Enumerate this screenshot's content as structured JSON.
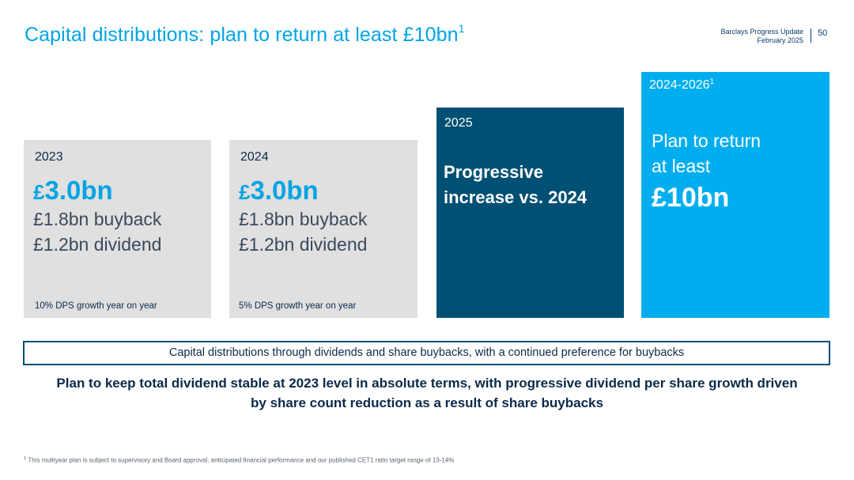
{
  "header": {
    "title": "Capital distributions: plan to return at least £10bn",
    "title_footnote_ref": "1",
    "doc_name": "Barclays Progress Update",
    "doc_date": "February 2025",
    "page_number": "50"
  },
  "cards": [
    {
      "year": "2023",
      "amount_symbol": "£",
      "amount_value": "3.0bn",
      "line1": "£1.8bn buyback",
      "line2": "£1.2bn dividend",
      "note": "10% DPS growth year on year"
    },
    {
      "year": "2024",
      "amount_symbol": "£",
      "amount_value": "3.0bn",
      "line1": "£1.8bn buyback",
      "line2": "£1.2bn dividend",
      "note": "5% DPS growth year on year"
    },
    {
      "year": "2025",
      "text_line1": "Progressive",
      "text_line2": "increase vs. 2024"
    },
    {
      "year": "2024-2026",
      "year_footnote_ref": "1",
      "line1": "Plan to return",
      "line2": "at least",
      "amount": "£10bn"
    }
  ],
  "banner": "Capital distributions through dividends and share buybacks, with a continued preference for buybacks",
  "statement": {
    "line1": "Plan to keep total dividend stable at 2023 level in absolute terms, with progressive dividend per share growth driven",
    "line2": "by share count reduction as a result of share buybacks"
  },
  "footnote": {
    "ref": "1",
    "text": "This multiyear plan is subject to supervisory and Board approval, anticipated financial performance and our published CET1 ratio target range of 13-14%"
  },
  "colors": {
    "accent_blue": "#00aeef",
    "navy": "#005073",
    "grey_card": "#e0e0e0",
    "text_dark": "#0b2a4a"
  }
}
